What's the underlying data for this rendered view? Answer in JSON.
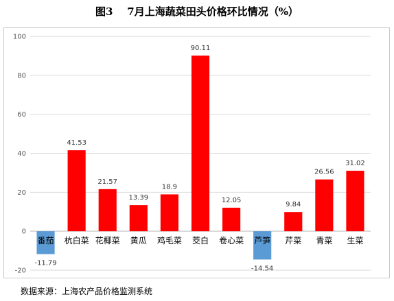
{
  "title": "图3    7月上海蔬菜田头价格环比情况（%）",
  "source": "数据来源：上海农产品价格监测系统",
  "colors": {
    "positive": "#ff0000",
    "negative": "#5b9bd5",
    "grid": "#d9d9d9"
  },
  "chart_data": {
    "type": "bar",
    "title": "图3    7月上海蔬菜田头价格环比情况（%）",
    "xlabel": "",
    "ylabel": "",
    "ylim": [
      -20,
      100
    ],
    "yticks": [
      -20,
      0,
      20,
      40,
      60,
      80,
      100
    ],
    "grid": true,
    "legend": "none",
    "categories": [
      "番茄",
      "杭白菜",
      "花椰菜",
      "黄瓜",
      "鸡毛菜",
      "茭白",
      "卷心菜",
      "芦笋",
      "芹菜",
      "青菜",
      "生菜"
    ],
    "values": [
      -11.79,
      41.53,
      21.57,
      13.39,
      18.9,
      90.11,
      12.05,
      -14.54,
      9.84,
      26.56,
      31.02
    ],
    "value_labels": [
      "-11.79",
      "41.53",
      "21.57",
      "13.39",
      "18.9",
      "90.11",
      "12.05",
      "-14.54",
      "9.84",
      "26.56",
      "31.02"
    ]
  }
}
